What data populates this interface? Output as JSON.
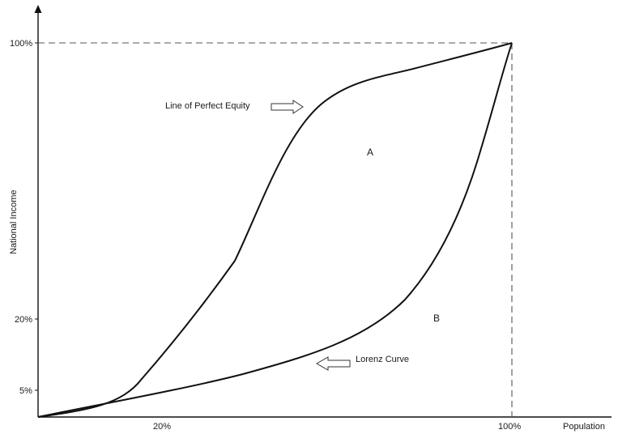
{
  "y_axis": {
    "label": "National Income",
    "ticks": [
      "100%",
      "20%",
      "5%"
    ]
  },
  "x_axis": {
    "label": "Population",
    "ticks": [
      "20%",
      "100%"
    ]
  },
  "annotations": {
    "equity_line": "Line of Perfect Equity",
    "lorenz_curve": "Lorenz Curve",
    "region_a": "A",
    "region_b": "B"
  },
  "colors": {
    "line": "#111111",
    "dashed_guide": "#555555",
    "arrow_outline": "#333333"
  },
  "icons": {
    "equity_arrow": "arrow-right-outline-icon",
    "lorenz_arrow": "arrow-left-outline-icon"
  }
}
